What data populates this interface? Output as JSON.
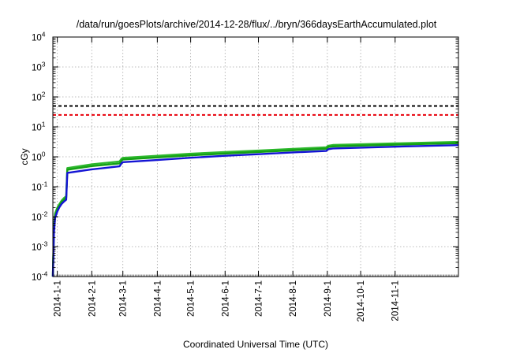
{
  "chart_data": {
    "type": "line",
    "title": "/data/run/goesPlots/archive/2014-12-28/flux/../bryn/366daysEarthAccumulated.plot",
    "xlabel": "Coordinated Universal Time (UTC)",
    "ylabel": "cGy",
    "yscale": "log",
    "ylim": [
      0.0001,
      10000
    ],
    "xlim": [
      "2013-12-28",
      "2014-12-28"
    ],
    "grid": true,
    "y_ticks": [
      {
        "value": 0.0001,
        "base": "10",
        "exp": "-4"
      },
      {
        "value": 0.001,
        "base": "10",
        "exp": "-3"
      },
      {
        "value": 0.01,
        "base": "10",
        "exp": "-2"
      },
      {
        "value": 0.1,
        "base": "10",
        "exp": "-1"
      },
      {
        "value": 1,
        "base": "10",
        "exp": "0"
      },
      {
        "value": 10,
        "base": "10",
        "exp": "1"
      },
      {
        "value": 100,
        "base": "10",
        "exp": "2"
      },
      {
        "value": 1000,
        "base": "10",
        "exp": "3"
      },
      {
        "value": 10000,
        "base": "10",
        "exp": "4"
      }
    ],
    "x_ticks": [
      "2014-1-1",
      "2014-2-1",
      "2014-3-1",
      "2014-4-1",
      "2014-5-1",
      "2014-6-1",
      "2014-7-1",
      "2014-8-1",
      "2014-9-1",
      "2014-10-1",
      "2014-11-1"
    ],
    "reference_lines": [
      {
        "value": 50,
        "color": "#000000"
      },
      {
        "value": 25,
        "color": "#e8000b"
      }
    ],
    "series": [
      {
        "color": "#2db82d",
        "x": [
          "2013-12-28",
          "2013-12-29",
          "2013-12-30",
          "2014-01-01",
          "2014-01-03",
          "2014-01-05",
          "2014-01-07",
          "2014-01-09",
          "2014-01-10",
          "2014-02-01",
          "2014-02-26",
          "2014-02-28",
          "2014-03-01",
          "2014-04-01",
          "2014-05-01",
          "2014-06-01",
          "2014-07-01",
          "2014-08-01",
          "2014-08-31",
          "2014-09-02",
          "2014-09-06",
          "2014-10-01",
          "2014-11-01",
          "2014-12-28"
        ],
        "values": [
          0.0001,
          0.005,
          0.013,
          0.02,
          0.027,
          0.035,
          0.042,
          0.048,
          0.42,
          0.56,
          0.7,
          0.88,
          0.92,
          1.08,
          1.27,
          1.44,
          1.62,
          1.84,
          2.08,
          2.35,
          2.48,
          2.62,
          2.8,
          3.15
        ]
      },
      {
        "color": "#14a014",
        "x": [
          "2013-12-28",
          "2013-12-29",
          "2013-12-30",
          "2014-01-01",
          "2014-01-03",
          "2014-01-05",
          "2014-01-07",
          "2014-01-09",
          "2014-01-10",
          "2014-02-01",
          "2014-02-26",
          "2014-02-28",
          "2014-03-01",
          "2014-04-01",
          "2014-05-01",
          "2014-06-01",
          "2014-07-01",
          "2014-08-01",
          "2014-08-31",
          "2014-09-02",
          "2014-09-06",
          "2014-10-01",
          "2014-11-01",
          "2014-12-28"
        ],
        "values": [
          0.0001,
          0.004,
          0.011,
          0.018,
          0.024,
          0.031,
          0.037,
          0.043,
          0.37,
          0.49,
          0.6,
          0.77,
          0.81,
          0.95,
          1.12,
          1.28,
          1.45,
          1.65,
          1.86,
          2.12,
          2.22,
          2.36,
          2.54,
          2.85
        ]
      },
      {
        "color": "#1414d4",
        "x": [
          "2013-12-28",
          "2013-12-29",
          "2013-12-30",
          "2014-01-01",
          "2014-01-03",
          "2014-01-05",
          "2014-01-07",
          "2014-01-09",
          "2014-01-10",
          "2014-02-01",
          "2014-02-26",
          "2014-02-28",
          "2014-03-01",
          "2014-04-01",
          "2014-05-01",
          "2014-06-01",
          "2014-07-01",
          "2014-08-01",
          "2014-08-31",
          "2014-09-02",
          "2014-09-06",
          "2014-10-01",
          "2014-11-01",
          "2014-12-28"
        ],
        "values": [
          0.0001,
          0.003,
          0.009,
          0.015,
          0.021,
          0.027,
          0.032,
          0.037,
          0.29,
          0.38,
          0.48,
          0.62,
          0.66,
          0.78,
          0.93,
          1.08,
          1.22,
          1.4,
          1.57,
          1.8,
          1.9,
          2.02,
          2.18,
          2.45
        ]
      }
    ]
  }
}
